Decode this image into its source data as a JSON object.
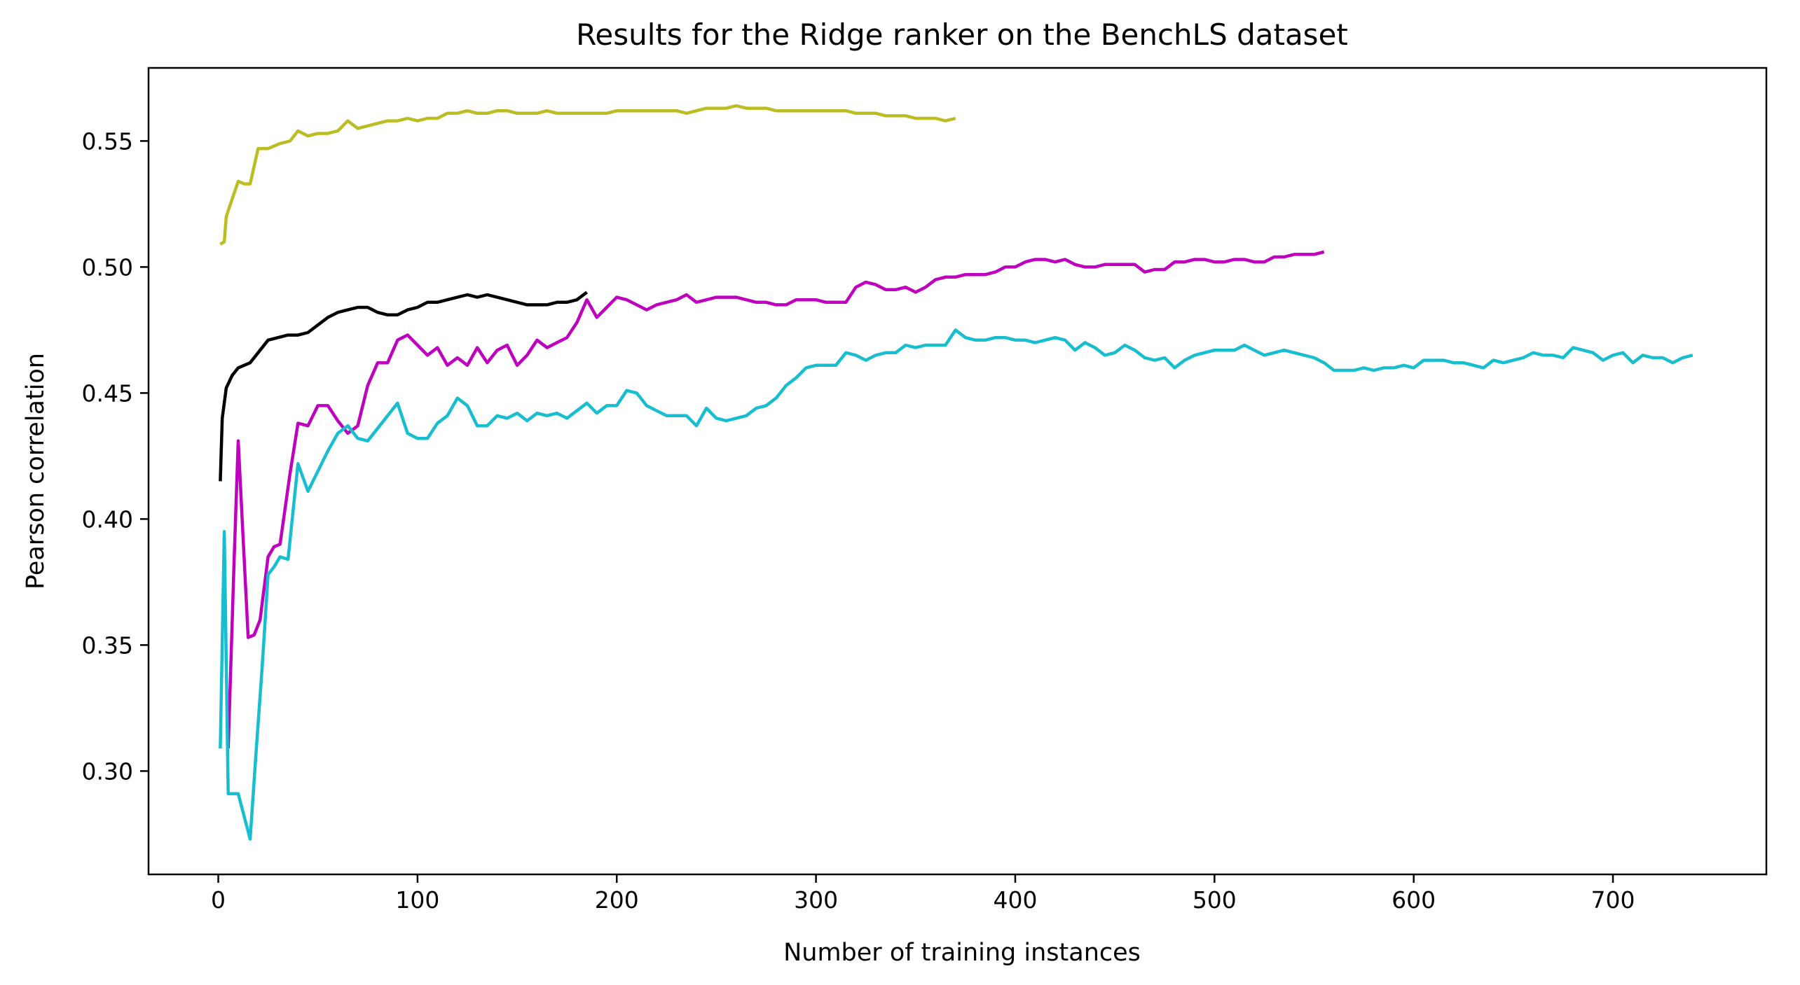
{
  "chart_data": {
    "type": "line",
    "title": "Results for the Ridge ranker on the BenchLS dataset",
    "xlabel": "Number of training instances",
    "ylabel": "Pearson correlation",
    "xlim": [
      -35,
      777
    ],
    "ylim": [
      0.259,
      0.579
    ],
    "xticks": [
      0,
      100,
      200,
      300,
      400,
      500,
      600,
      700
    ],
    "yticks": [
      0.3,
      0.35,
      0.4,
      0.45,
      0.5,
      0.55
    ],
    "ytick_labels": [
      "0.30",
      "0.35",
      "0.40",
      "0.45",
      "0.50",
      "0.55"
    ],
    "grid": false,
    "series": [
      {
        "color": "#bcbd22",
        "x": [
          1,
          3,
          4,
          7,
          10,
          13,
          16,
          20,
          25,
          28,
          31,
          36,
          40,
          45,
          50,
          55,
          60,
          65,
          70,
          75,
          80,
          85,
          90,
          95,
          100,
          105,
          110,
          115,
          120,
          125,
          130,
          135,
          140,
          145,
          150,
          155,
          160,
          165,
          170,
          175,
          180,
          185,
          190,
          195,
          200,
          205,
          210,
          215,
          220,
          225,
          230,
          235,
          240,
          245,
          250,
          255,
          260,
          265,
          270,
          275,
          280,
          285,
          290,
          295,
          300,
          305,
          310,
          315,
          320,
          325,
          330,
          335,
          340,
          345,
          350,
          355,
          360,
          365,
          370
        ],
        "y": [
          0.509,
          0.51,
          0.52,
          0.527,
          0.534,
          0.533,
          0.533,
          0.547,
          0.547,
          0.548,
          0.549,
          0.55,
          0.554,
          0.552,
          0.553,
          0.553,
          0.554,
          0.558,
          0.555,
          0.556,
          0.557,
          0.558,
          0.558,
          0.559,
          0.558,
          0.559,
          0.559,
          0.561,
          0.561,
          0.562,
          0.561,
          0.561,
          0.562,
          0.562,
          0.561,
          0.561,
          0.561,
          0.562,
          0.561,
          0.561,
          0.561,
          0.561,
          0.561,
          0.561,
          0.562,
          0.562,
          0.562,
          0.562,
          0.562,
          0.562,
          0.562,
          0.561,
          0.562,
          0.563,
          0.563,
          0.563,
          0.564,
          0.563,
          0.563,
          0.563,
          0.562,
          0.562,
          0.562,
          0.562,
          0.562,
          0.562,
          0.562,
          0.562,
          0.561,
          0.561,
          0.561,
          0.56,
          0.56,
          0.56,
          0.559,
          0.559,
          0.559,
          0.558,
          0.559
        ]
      },
      {
        "color": "#000000",
        "x": [
          1,
          2,
          4,
          7,
          10,
          13,
          16,
          20,
          25,
          30,
          35,
          40,
          45,
          50,
          55,
          60,
          65,
          70,
          75,
          80,
          85,
          90,
          95,
          100,
          105,
          110,
          115,
          120,
          125,
          130,
          135,
          140,
          145,
          150,
          155,
          160,
          165,
          170,
          175,
          180,
          185
        ],
        "y": [
          0.415,
          0.44,
          0.452,
          0.457,
          0.46,
          0.461,
          0.462,
          0.466,
          0.471,
          0.472,
          0.473,
          0.473,
          0.474,
          0.477,
          0.48,
          0.482,
          0.483,
          0.484,
          0.484,
          0.482,
          0.481,
          0.481,
          0.483,
          0.484,
          0.486,
          0.486,
          0.487,
          0.488,
          0.489,
          0.488,
          0.489,
          0.488,
          0.487,
          0.486,
          0.485,
          0.485,
          0.485,
          0.486,
          0.486,
          0.487,
          0.49
        ]
      },
      {
        "color": "#bf00bf",
        "x": [
          5,
          8,
          10,
          12,
          15,
          18,
          21,
          25,
          28,
          31,
          36,
          40,
          45,
          50,
          55,
          60,
          65,
          70,
          75,
          80,
          85,
          90,
          95,
          100,
          105,
          110,
          115,
          120,
          125,
          130,
          135,
          140,
          145,
          150,
          155,
          160,
          165,
          170,
          175,
          180,
          185,
          190,
          195,
          200,
          205,
          210,
          215,
          220,
          225,
          230,
          235,
          240,
          245,
          250,
          255,
          260,
          265,
          270,
          275,
          280,
          285,
          290,
          295,
          300,
          305,
          310,
          315,
          320,
          325,
          330,
          335,
          340,
          345,
          350,
          355,
          360,
          365,
          370,
          375,
          380,
          385,
          390,
          395,
          400,
          405,
          410,
          415,
          420,
          425,
          430,
          435,
          440,
          445,
          450,
          455,
          460,
          465,
          470,
          475,
          480,
          485,
          490,
          495,
          500,
          505,
          510,
          515,
          520,
          525,
          530,
          535,
          540,
          545,
          550,
          555
        ],
        "y": [
          0.309,
          0.385,
          0.431,
          0.4,
          0.353,
          0.354,
          0.36,
          0.385,
          0.389,
          0.39,
          0.418,
          0.438,
          0.437,
          0.445,
          0.445,
          0.439,
          0.434,
          0.437,
          0.453,
          0.462,
          0.462,
          0.471,
          0.473,
          0.469,
          0.465,
          0.468,
          0.461,
          0.464,
          0.461,
          0.468,
          0.462,
          0.467,
          0.469,
          0.461,
          0.465,
          0.471,
          0.468,
          0.47,
          0.472,
          0.478,
          0.487,
          0.48,
          0.484,
          0.488,
          0.487,
          0.485,
          0.483,
          0.485,
          0.486,
          0.487,
          0.489,
          0.486,
          0.487,
          0.488,
          0.488,
          0.488,
          0.487,
          0.486,
          0.486,
          0.485,
          0.485,
          0.487,
          0.487,
          0.487,
          0.486,
          0.486,
          0.486,
          0.492,
          0.494,
          0.493,
          0.491,
          0.491,
          0.492,
          0.49,
          0.492,
          0.495,
          0.496,
          0.496,
          0.497,
          0.497,
          0.497,
          0.498,
          0.5,
          0.5,
          0.502,
          0.503,
          0.503,
          0.502,
          0.503,
          0.501,
          0.5,
          0.5,
          0.501,
          0.501,
          0.501,
          0.501,
          0.498,
          0.499,
          0.499,
          0.502,
          0.502,
          0.503,
          0.503,
          0.502,
          0.502,
          0.503,
          0.503,
          0.502,
          0.502,
          0.504,
          0.504,
          0.505,
          0.505,
          0.505,
          0.506
        ]
      },
      {
        "color": "#17becf",
        "x": [
          1,
          3,
          5,
          7,
          10,
          13,
          16,
          19,
          22,
          25,
          28,
          31,
          35,
          40,
          45,
          50,
          55,
          60,
          65,
          70,
          75,
          80,
          85,
          90,
          95,
          100,
          105,
          110,
          115,
          120,
          125,
          130,
          135,
          140,
          145,
          150,
          155,
          160,
          165,
          170,
          175,
          180,
          185,
          190,
          195,
          200,
          205,
          210,
          215,
          220,
          225,
          230,
          235,
          240,
          245,
          250,
          255,
          260,
          265,
          270,
          275,
          280,
          285,
          290,
          295,
          300,
          305,
          310,
          315,
          320,
          325,
          330,
          335,
          340,
          345,
          350,
          355,
          360,
          365,
          370,
          375,
          380,
          385,
          390,
          395,
          400,
          405,
          410,
          415,
          420,
          425,
          430,
          435,
          440,
          445,
          450,
          455,
          460,
          465,
          470,
          475,
          480,
          485,
          490,
          495,
          500,
          505,
          510,
          515,
          520,
          525,
          530,
          535,
          540,
          545,
          550,
          555,
          560,
          565,
          570,
          575,
          580,
          585,
          590,
          595,
          600,
          605,
          610,
          615,
          620,
          625,
          630,
          635,
          640,
          645,
          650,
          655,
          660,
          665,
          670,
          675,
          680,
          685,
          690,
          695,
          700,
          705,
          710,
          715,
          720,
          725,
          730,
          735,
          740
        ],
        "y": [
          0.309,
          0.395,
          0.291,
          0.291,
          0.291,
          0.282,
          0.273,
          0.308,
          0.341,
          0.378,
          0.381,
          0.385,
          0.384,
          0.422,
          0.411,
          0.419,
          0.427,
          0.434,
          0.437,
          0.432,
          0.431,
          0.436,
          0.441,
          0.446,
          0.434,
          0.432,
          0.432,
          0.438,
          0.441,
          0.448,
          0.445,
          0.437,
          0.437,
          0.441,
          0.44,
          0.442,
          0.439,
          0.442,
          0.441,
          0.442,
          0.44,
          0.443,
          0.446,
          0.442,
          0.445,
          0.445,
          0.451,
          0.45,
          0.445,
          0.443,
          0.441,
          0.441,
          0.441,
          0.437,
          0.444,
          0.44,
          0.439,
          0.44,
          0.441,
          0.444,
          0.445,
          0.448,
          0.453,
          0.456,
          0.46,
          0.461,
          0.461,
          0.461,
          0.466,
          0.465,
          0.463,
          0.465,
          0.466,
          0.466,
          0.469,
          0.468,
          0.469,
          0.469,
          0.469,
          0.475,
          0.472,
          0.471,
          0.471,
          0.472,
          0.472,
          0.471,
          0.471,
          0.47,
          0.471,
          0.472,
          0.471,
          0.467,
          0.47,
          0.468,
          0.465,
          0.466,
          0.469,
          0.467,
          0.464,
          0.463,
          0.464,
          0.46,
          0.463,
          0.465,
          0.466,
          0.467,
          0.467,
          0.467,
          0.469,
          0.467,
          0.465,
          0.466,
          0.467,
          0.466,
          0.465,
          0.464,
          0.462,
          0.459,
          0.459,
          0.459,
          0.46,
          0.459,
          0.46,
          0.46,
          0.461,
          0.46,
          0.463,
          0.463,
          0.463,
          0.462,
          0.462,
          0.461,
          0.46,
          0.463,
          0.462,
          0.463,
          0.464,
          0.466,
          0.465,
          0.465,
          0.464,
          0.468,
          0.467,
          0.466,
          0.463,
          0.465,
          0.466,
          0.462,
          0.465,
          0.464,
          0.464,
          0.462,
          0.464,
          0.465
        ]
      }
    ]
  }
}
